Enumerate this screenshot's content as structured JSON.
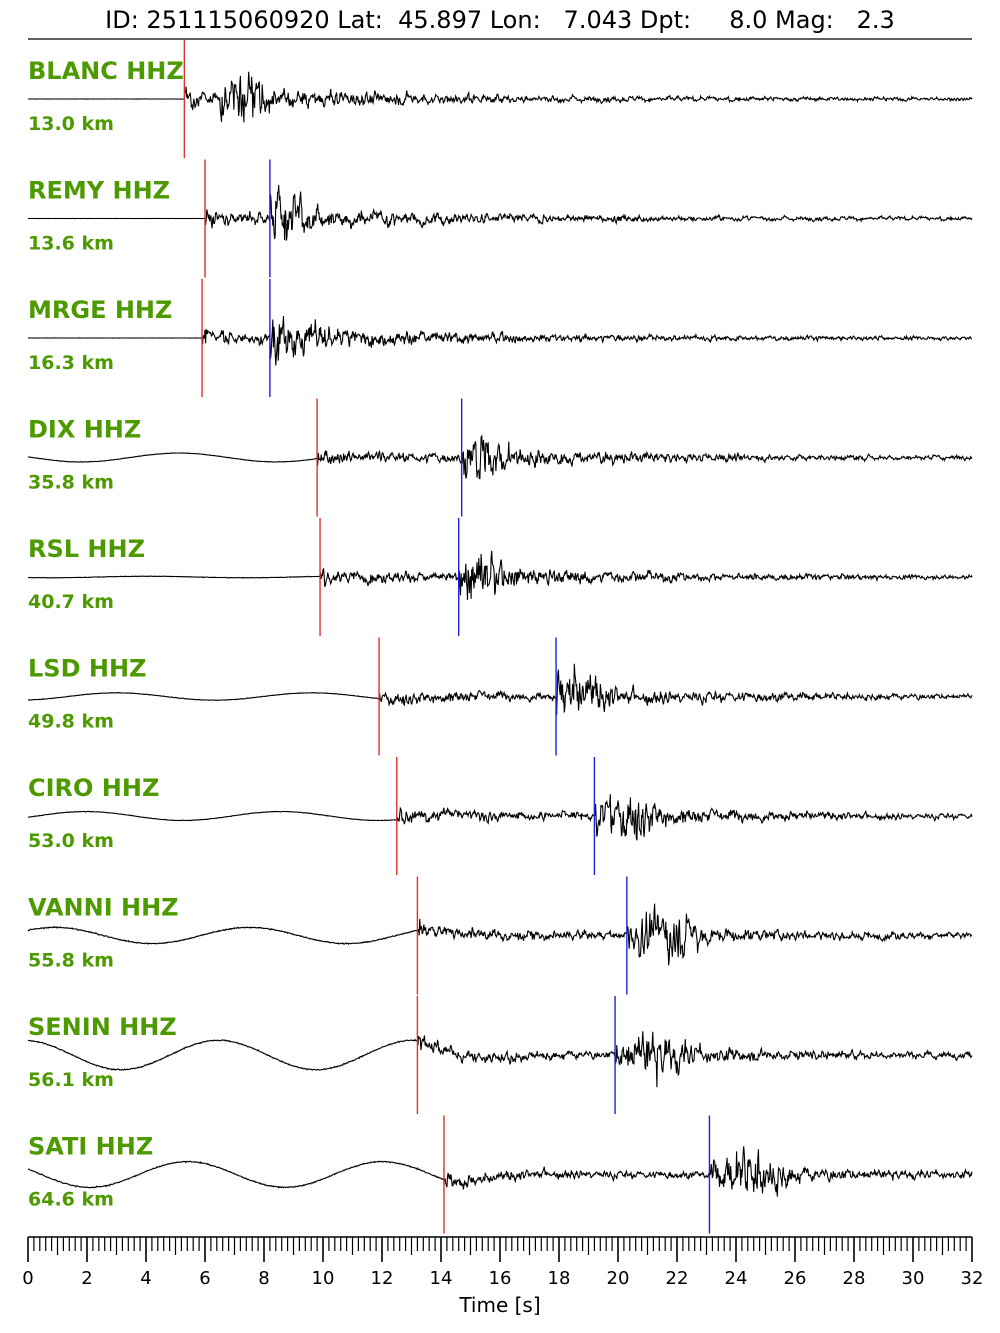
{
  "header": {
    "title": "ID: 251115060920 Lat:  45.897 Lon:   7.043 Dpt:     8.0 Mag:   2.3"
  },
  "chart_data": {
    "type": "line",
    "xlabel": "Time [s]",
    "xlim": [
      0,
      32
    ],
    "x_ticks": [
      "0",
      "2",
      "4",
      "6",
      "8",
      "10",
      "12",
      "14",
      "16",
      "18",
      "20",
      "22",
      "24",
      "26",
      "28",
      "30",
      "32"
    ],
    "colors": {
      "trace": "#000000",
      "p_pick": "#e03030",
      "s_pick": "#2020dd",
      "label": "#4d9900"
    },
    "traces": [
      {
        "station": "BLANC HHZ",
        "distance": "13.0 km",
        "p_pick": 5.3,
        "s_pick": null,
        "s_peak": 7.0,
        "noise": 0.005,
        "pre_wave": 0.0,
        "coda_amp": 0.55
      },
      {
        "station": "REMY HHZ",
        "distance": "13.6 km",
        "p_pick": 6.0,
        "s_pick": 8.2,
        "s_peak": 8.3,
        "noise": 0.005,
        "pre_wave": 0.0,
        "coda_amp": 0.6
      },
      {
        "station": "MRGE HHZ",
        "distance": "16.3 km",
        "p_pick": 5.9,
        "s_pick": 8.2,
        "s_peak": 8.3,
        "noise": 0.005,
        "pre_wave": 0.0,
        "coda_amp": 0.55
      },
      {
        "station": "DIX HHZ",
        "distance": "35.8 km",
        "p_pick": 9.8,
        "s_pick": 14.7,
        "s_peak": 15.0,
        "noise": 0.01,
        "pre_wave": 0.12,
        "coda_amp": 0.6
      },
      {
        "station": "RSL HHZ",
        "distance": "40.7 km",
        "p_pick": 9.9,
        "s_pick": 14.6,
        "s_peak": 15.0,
        "noise": 0.01,
        "pre_wave": 0.02,
        "coda_amp": 0.6
      },
      {
        "station": "LSD HHZ",
        "distance": "49.8 km",
        "p_pick": 11.9,
        "s_pick": 17.9,
        "s_peak": 18.4,
        "noise": 0.01,
        "pre_wave": 0.1,
        "coda_amp": 0.6
      },
      {
        "station": "CIRO HHZ",
        "distance": "53.0 km",
        "p_pick": 12.5,
        "s_pick": 19.2,
        "s_peak": 20.2,
        "noise": 0.01,
        "pre_wave": 0.12,
        "coda_amp": 0.6
      },
      {
        "station": "VANNI HHZ",
        "distance": "55.8 km",
        "p_pick": 13.2,
        "s_pick": 20.3,
        "s_peak": 21.5,
        "noise": 0.02,
        "pre_wave": 0.22,
        "coda_amp": 0.6
      },
      {
        "station": "SENIN HHZ",
        "distance": "56.1 km",
        "p_pick": 13.2,
        "s_pick": 19.9,
        "s_peak": 21.2,
        "noise": 0.02,
        "pre_wave": 0.4,
        "coda_amp": 0.55
      },
      {
        "station": "SATI HHZ",
        "distance": "64.6 km",
        "p_pick": 14.1,
        "s_pick": 23.1,
        "s_peak": 24.5,
        "noise": 0.02,
        "pre_wave": 0.35,
        "coda_amp": 0.6
      }
    ]
  }
}
